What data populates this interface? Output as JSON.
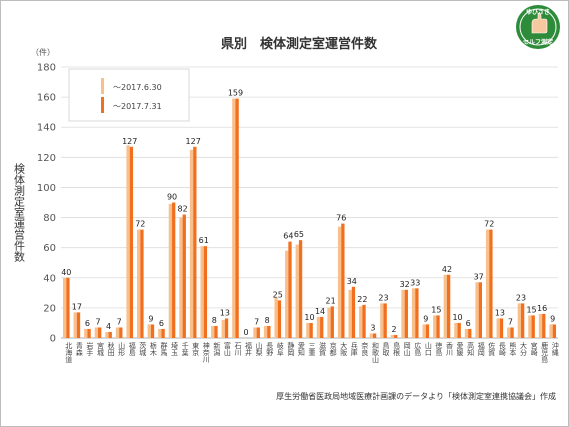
{
  "chart_data": {
    "type": "bar",
    "title": "県別　検体測定室運営件数",
    "unit_label": "（件）",
    "ylabel": "検体測定室運営件数",
    "ylim": [
      0,
      180
    ],
    "yticks": [
      0,
      20,
      40,
      60,
      80,
      100,
      120,
      140,
      160,
      180
    ],
    "grid": true,
    "legend_position": "top-left",
    "categories": [
      "北海道",
      "青森",
      "岩手",
      "宮城",
      "秋田",
      "山形",
      "福島",
      "茨城",
      "栃木",
      "群馬",
      "埼玉",
      "千葉",
      "東京",
      "神奈川",
      "新潟",
      "富山",
      "石川",
      "福井",
      "山梨",
      "長野",
      "岐阜",
      "静岡",
      "愛知",
      "三重",
      "滋賀",
      "京都",
      "大阪",
      "兵庫",
      "奈良",
      "和歌山",
      "鳥取",
      "島根",
      "岡山",
      "広島",
      "山口",
      "徳島",
      "香川",
      "愛媛",
      "高知",
      "福岡",
      "佐賀",
      "長崎",
      "熊本",
      "大分",
      "宮崎",
      "鹿児島",
      "沖縄"
    ],
    "series": [
      {
        "name": "〜2017.6.30",
        "color": "#f9c08c",
        "values": [
          40,
          17,
          6,
          7,
          4,
          7,
          128,
          72,
          9,
          6,
          89,
          80,
          125,
          61,
          8,
          12,
          159,
          0,
          7,
          8,
          27,
          58,
          62,
          10,
          14,
          20,
          74,
          32,
          21,
          3,
          23,
          2,
          32,
          33,
          9,
          15,
          42,
          10,
          6,
          37,
          72,
          13,
          7,
          23,
          15,
          16,
          9
        ]
      },
      {
        "name": "〜2017.7.31",
        "color": "#f07020",
        "values": [
          40,
          17,
          6,
          7,
          4,
          7,
          127,
          72,
          9,
          6,
          90,
          82,
          127,
          61,
          8,
          13,
          159,
          0,
          7,
          8,
          25,
          64,
          65,
          10,
          14,
          21,
          76,
          34,
          22,
          3,
          23,
          2,
          32,
          33,
          9,
          15,
          42,
          10,
          6,
          37,
          72,
          13,
          7,
          23,
          15,
          16,
          9
        ]
      }
    ]
  },
  "source_note": "厚生労働省医政局地域医療計画課のデータより「検体測定室連携協議会」作成",
  "logo": {
    "top_text": "ゆびさき",
    "bottom_text": "セルフ測定",
    "color": "#2e8b3a"
  }
}
